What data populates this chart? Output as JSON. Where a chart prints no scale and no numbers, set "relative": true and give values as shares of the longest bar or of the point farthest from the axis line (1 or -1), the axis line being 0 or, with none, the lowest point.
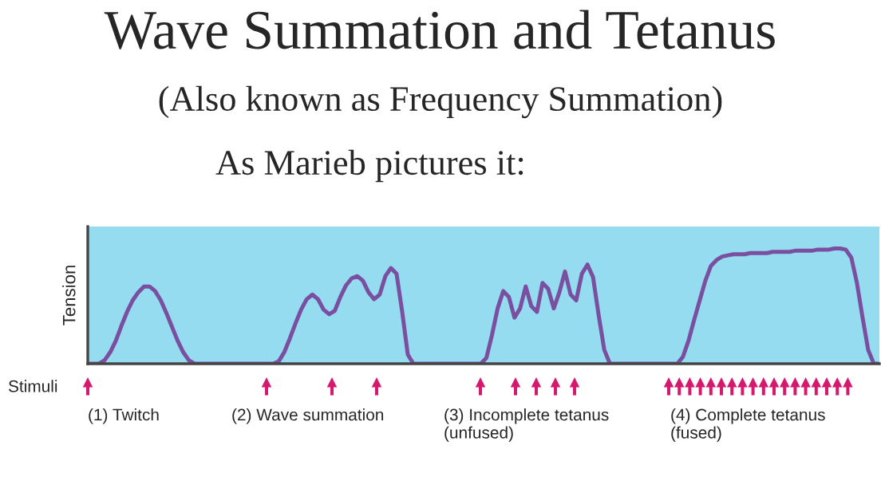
{
  "chart_data": {
    "type": "line",
    "title": "Wave Summation and Tetanus",
    "subtitle": "(Also known as Frequency Summation)",
    "ylabel": "Tension",
    "annotations": [
      "As Marieb pictures it:",
      "Stimuli",
      "(1) Twitch",
      "(2) Wave summation",
      "(3) Incomplete tetanus\n(unfused)",
      "(4) Complete tetanus\n(fused)"
    ],
    "relative": true,
    "categories": [
      null,
      null,
      null,
      null,
      null,
      null,
      null,
      null,
      null,
      null,
      null,
      null,
      null,
      null,
      null,
      null,
      null,
      null,
      null,
      null,
      null,
      null,
      null,
      null,
      null,
      null,
      null,
      null,
      null,
      null,
      null,
      null,
      null,
      null,
      null,
      null,
      null,
      null,
      null,
      null,
      null,
      null,
      null,
      null,
      null,
      null,
      null,
      null,
      null,
      null,
      null,
      null,
      null,
      null,
      null,
      null,
      null,
      null,
      null,
      null,
      null,
      null,
      null,
      null,
      null,
      null,
      null,
      null,
      null,
      null,
      null,
      null,
      null,
      null,
      null,
      null,
      null,
      null,
      null,
      null,
      null,
      null,
      null,
      null,
      null,
      null,
      null,
      null,
      null,
      null,
      null,
      null,
      null,
      null,
      null,
      null,
      null,
      null,
      null,
      null,
      null,
      null,
      null,
      null,
      null,
      null,
      null,
      null,
      null,
      null,
      null,
      null,
      null,
      null,
      null,
      null,
      null,
      null,
      null,
      null,
      null,
      null,
      null,
      null,
      null,
      null,
      null,
      null,
      null,
      null,
      null,
      null,
      null,
      null,
      null,
      null,
      null,
      null,
      null,
      null,
      null,
      null
    ],
    "series": [
      {
        "color": "#7b4fa0",
        "values": [
          0,
          0,
          0,
          0.03,
          0.1,
          0.2,
          0.33,
          0.45,
          0.55,
          0.62,
          0.67,
          0.67,
          0.63,
          0.55,
          0.44,
          0.32,
          0.2,
          0.1,
          0.03,
          0,
          0,
          0,
          0,
          0,
          0,
          0,
          0,
          0,
          0,
          0,
          0,
          0,
          0,
          0,
          0.02,
          0.1,
          0.22,
          0.35,
          0.47,
          0.56,
          0.6,
          0.56,
          0.47,
          0.43,
          0.46,
          0.58,
          0.68,
          0.74,
          0.76,
          0.72,
          0.62,
          0.56,
          0.6,
          0.76,
          0.83,
          0.78,
          0.45,
          0.08,
          0,
          0,
          0,
          0,
          0,
          0,
          0,
          0,
          0,
          0,
          0,
          0,
          0,
          0.05,
          0.25,
          0.48,
          0.63,
          0.58,
          0.4,
          0.48,
          0.67,
          0.5,
          0.45,
          0.7,
          0.65,
          0.48,
          0.62,
          0.8,
          0.6,
          0.55,
          0.78,
          0.86,
          0.75,
          0.42,
          0.12,
          0,
          0,
          0,
          0,
          0,
          0,
          0,
          0,
          0,
          0,
          0,
          0,
          0,
          0.06,
          0.2,
          0.38,
          0.55,
          0.72,
          0.85,
          0.9,
          0.93,
          0.94,
          0.95,
          0.95,
          0.95,
          0.96,
          0.96,
          0.96,
          0.96,
          0.97,
          0.97,
          0.97,
          0.97,
          0.98,
          0.98,
          0.98,
          0.98,
          0.99,
          0.99,
          0.99,
          1.0,
          1.0,
          0.99,
          0.92,
          0.7,
          0.4,
          0.12,
          0,
          0
        ]
      }
    ]
  }
}
